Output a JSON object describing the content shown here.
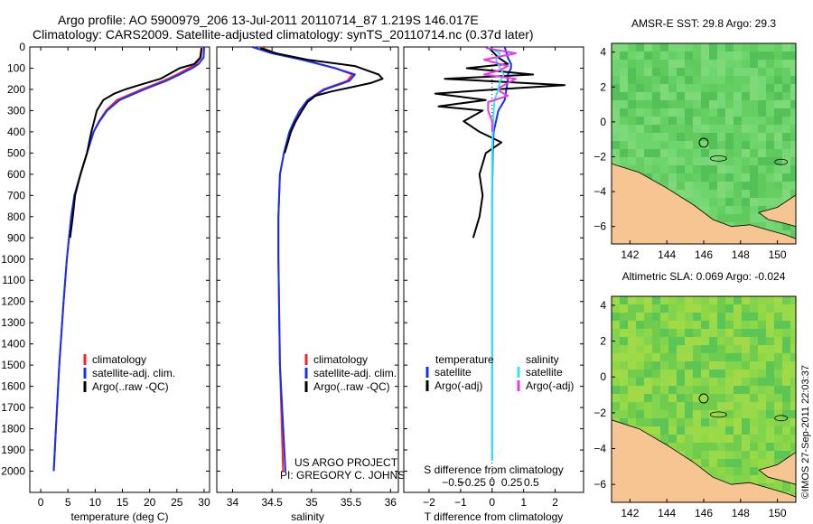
{
  "header": {
    "title_line1": "Argo profile: AO 5900979_206 13-Jul-2011 20110714_87 1.219S 146.017E",
    "title_line2": "Climatology: CARS2009. Satellite-adjusted climatology: synTS_20110714.nc (0.37d later)"
  },
  "credit": "©IMOS 27-Sep-2011 22:03:37",
  "colors": {
    "climatology": "#ff2020",
    "satellite": "#1030ff",
    "argo": "#000000",
    "sal_satellite": "#30e8f0",
    "sal_argo": "#e838e8",
    "land": "#f6c592"
  },
  "chart_data": [
    {
      "id": "temperature",
      "type": "line",
      "xlabel": "temperature (deg C)",
      "ylabel": "",
      "xlim": [
        -2,
        31
      ],
      "ylim": [
        2100,
        0
      ],
      "xticks": [
        0,
        5,
        10,
        15,
        20,
        25,
        30
      ],
      "yticks": [
        0,
        100,
        200,
        300,
        400,
        500,
        600,
        700,
        800,
        900,
        1000,
        1100,
        1200,
        1300,
        1400,
        1500,
        1600,
        1700,
        1800,
        1900,
        2000
      ],
      "legend": [
        "climatology",
        "satellite-adj. clim.",
        "Argo(..raw -QC)"
      ],
      "series": [
        {
          "name": "climatology",
          "color": "#ff2020",
          "depth": [
            0,
            50,
            80,
            100,
            130,
            160,
            200,
            250,
            300,
            350,
            400,
            500,
            600,
            700,
            800,
            1000,
            1200,
            1500,
            1800,
            2000
          ],
          "values": [
            29.6,
            29.4,
            28.5,
            27.2,
            25,
            22.5,
            18.5,
            14,
            12,
            10.7,
            9.7,
            8.5,
            7.3,
            6.2,
            5.6,
            4.8,
            4.2,
            3.4,
            2.8,
            2.4
          ]
        },
        {
          "name": "satellite-adj. clim.",
          "color": "#1030ff",
          "depth": [
            0,
            50,
            80,
            100,
            130,
            160,
            200,
            250,
            300,
            350,
            400,
            500,
            600,
            700,
            800,
            1000,
            1200,
            1500,
            1800,
            2000
          ],
          "values": [
            30,
            29.9,
            29,
            27.8,
            25.5,
            23,
            19,
            14.5,
            12.2,
            10.8,
            9.7,
            8.5,
            7.3,
            6.2,
            5.6,
            4.8,
            4.2,
            3.4,
            2.8,
            2.4
          ]
        },
        {
          "name": "Argo(..raw -QC)",
          "color": "#000000",
          "depth": [
            5,
            50,
            80,
            100,
            150,
            180,
            200,
            220,
            250,
            300,
            350,
            400,
            450,
            500,
            600,
            700,
            800,
            900
          ],
          "values": [
            29.5,
            29.3,
            28.2,
            25.5,
            22,
            18,
            15.5,
            13.5,
            11.5,
            10.3,
            9.8,
            9.3,
            8.9,
            8.5,
            7.3,
            6.3,
            5.9,
            5.4
          ]
        }
      ]
    },
    {
      "id": "salinity",
      "type": "line",
      "xlabel": "salinity",
      "ylabel": "",
      "xlim": [
        33.8,
        36.1
      ],
      "ylim": [
        2100,
        0
      ],
      "xticks": [
        34,
        34.5,
        35,
        35.5,
        36
      ],
      "xtick_labels": [
        "34",
        "34.5",
        "35",
        "35.5",
        "36"
      ],
      "legend": [
        "climatology",
        "satellite-adj. clim.",
        "Argo(..raw -QC)"
      ],
      "annotation": [
        "US ARGO PROJECT",
        "PI: GREGORY C. JOHNSON"
      ],
      "series": [
        {
          "name": "climatology",
          "color": "#ff2020",
          "depth": [
            0,
            30,
            60,
            100,
            130,
            160,
            200,
            250,
            300,
            350,
            400,
            500,
            600,
            800,
            1000,
            1500,
            2000
          ],
          "values": [
            34.35,
            34.55,
            34.9,
            35.3,
            35.52,
            35.45,
            35.15,
            34.95,
            34.85,
            34.78,
            34.72,
            34.65,
            34.6,
            34.58,
            34.58,
            34.6,
            34.64
          ]
        },
        {
          "name": "satellite-adj. clim.",
          "color": "#1030ff",
          "depth": [
            0,
            30,
            60,
            100,
            130,
            160,
            200,
            250,
            300,
            350,
            400,
            500,
            600,
            800,
            1000,
            1500,
            2000
          ],
          "values": [
            34.25,
            34.5,
            34.88,
            35.3,
            35.55,
            35.48,
            35.17,
            34.95,
            34.85,
            34.78,
            34.72,
            34.65,
            34.6,
            34.58,
            34.58,
            34.6,
            34.67
          ]
        },
        {
          "name": "Argo(..raw -QC)",
          "color": "#000000",
          "depth": [
            5,
            30,
            60,
            90,
            110,
            130,
            150,
            170,
            190,
            210,
            230,
            260,
            300,
            350,
            400,
            450,
            500
          ],
          "values": [
            34.35,
            34.55,
            34.95,
            35.55,
            35.7,
            35.85,
            35.9,
            35.75,
            35.5,
            35.25,
            35.05,
            34.95,
            34.88,
            34.8,
            34.74,
            34.7,
            34.66
          ]
        }
      ]
    },
    {
      "id": "difference",
      "type": "line",
      "xlabel": "T difference from climatology",
      "xlabel_top": "S difference from climatology",
      "xlim": [
        -2.8,
        2.9
      ],
      "ylim": [
        2100,
        0
      ],
      "xticks": [
        -2,
        -1,
        0,
        1,
        2
      ],
      "xtick_labels": [
        "−2",
        "−1",
        "0",
        "1",
        "2"
      ],
      "s_ticks": [
        -0.5,
        -0.25,
        0,
        0.25,
        0.5
      ],
      "s_tick_labels": [
        "−0.5",
        "−0.25",
        "0",
        "0.25",
        "0.5"
      ],
      "s_scale": 2.5,
      "legend_title_t": "temperature",
      "legend_title_s": "salinity",
      "legend_t": [
        "satellite",
        "Argo(-adj)"
      ],
      "legend_s": [
        "satellite",
        "Argo(-adj)"
      ],
      "series": [
        {
          "name": "T satellite",
          "color": "#1030ff",
          "depth": [
            0,
            50,
            80,
            100,
            130,
            160,
            200,
            250,
            300,
            400,
            500,
            700,
            1000,
            1500,
            1950
          ],
          "values": [
            0.4,
            0.5,
            0.6,
            0.6,
            0.5,
            0.5,
            0.45,
            0.4,
            0.2,
            0.05,
            0.02,
            0,
            0,
            0,
            0
          ]
        },
        {
          "name": "T Argo(-adj)",
          "color": "#000000",
          "depth": [
            5,
            50,
            80,
            100,
            130,
            150,
            180,
            200,
            220,
            250,
            280,
            300,
            350,
            400,
            450,
            500,
            600,
            700,
            800,
            900
          ],
          "values": [
            -0.1,
            0.2,
            0.5,
            -0.8,
            1.3,
            -1.5,
            2.3,
            0.1,
            -1.8,
            -0.2,
            -1.7,
            -0.3,
            -0.9,
            -0.4,
            0.3,
            -0.2,
            -0.4,
            -0.3,
            -0.4,
            -0.6
          ]
        },
        {
          "name": "S satellite",
          "color": "#30e8f0",
          "depth": [
            0,
            30,
            60,
            100,
            130,
            160,
            200,
            250,
            300,
            400,
            500,
            700,
            1000,
            1500,
            1950
          ],
          "values": [
            -0.05,
            0.1,
            0.05,
            0.1,
            0.15,
            0.1,
            0.08,
            0.03,
            0.02,
            0.01,
            0,
            0,
            0,
            0,
            0
          ]
        },
        {
          "name": "S Argo(-adj)",
          "color": "#e838e8",
          "depth": [
            5,
            30,
            60,
            90,
            110,
            130,
            150,
            170,
            190,
            210,
            230,
            260,
            300,
            350,
            400
          ],
          "values": [
            -0.08,
            0.3,
            -0.1,
            0.2,
            0.1,
            -0.1,
            0.3,
            0.2,
            0.1,
            0.1,
            0.2,
            -0.05,
            -0.05,
            0,
            0
          ]
        }
      ]
    },
    {
      "id": "sst_map",
      "type": "heatmap",
      "title": "AMSR-E SST: 29.8 Argo: 29.3",
      "xlim": [
        141,
        151
      ],
      "ylim": [
        -7,
        4.5
      ],
      "xticks": [
        142,
        144,
        146,
        148,
        150
      ],
      "yticks": [
        4,
        2,
        0,
        -2,
        -4,
        -6
      ],
      "profile_location": [
        146,
        -1.2
      ]
    },
    {
      "id": "sla_map",
      "type": "heatmap",
      "title": "Altimetric SLA: 0.069 Argo: -0.024",
      "xlim": [
        141,
        151
      ],
      "ylim": [
        -7,
        4.5
      ],
      "xticks": [
        142,
        144,
        146,
        148,
        150
      ],
      "yticks": [
        4,
        2,
        0,
        -2,
        -4,
        -6
      ],
      "profile_location": [
        146,
        -1.2
      ]
    }
  ]
}
